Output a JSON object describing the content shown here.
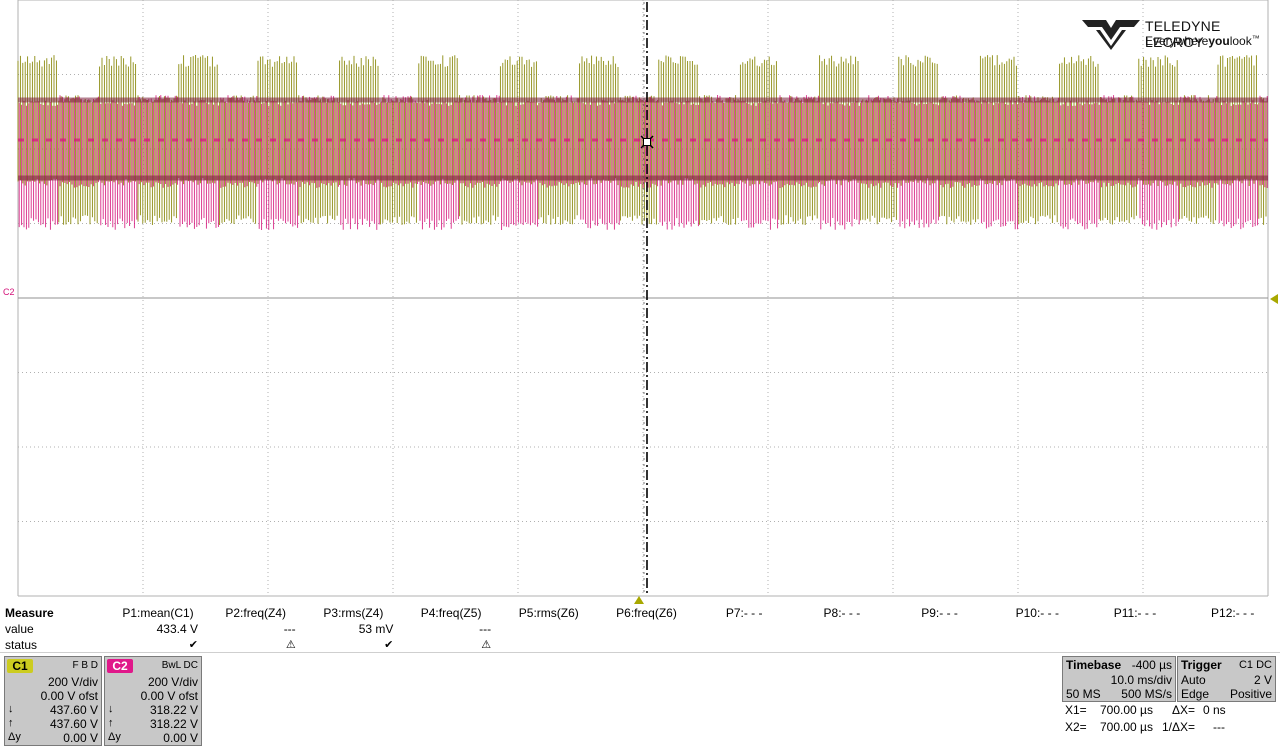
{
  "brand": {
    "name": "TELEDYNE LECROY",
    "tagline_pre": "Everywhere",
    "tagline_bold": "you",
    "tagline_post": "look",
    "tm": "™"
  },
  "trace_marker": "C2",
  "colors": {
    "c1": "#8c8c10",
    "c2": "#d4127a",
    "grid": "#b0b0b0",
    "cursor": "#000000"
  },
  "measure": {
    "title": "Measure",
    "row_value": "value",
    "row_status": "status",
    "params": [
      {
        "name": "P1:mean(C1)",
        "value": "433.4 V",
        "status": "✔"
      },
      {
        "name": "P2:freq(Z4)",
        "value": "---",
        "status": "⚠"
      },
      {
        "name": "P3:rms(Z4)",
        "value": "53 mV",
        "status": "✔"
      },
      {
        "name": "P4:freq(Z5)",
        "value": "---",
        "status": "⚠"
      },
      {
        "name": "P5:rms(Z6)",
        "value": "",
        "status": ""
      },
      {
        "name": "P6:freq(Z6)",
        "value": "",
        "status": ""
      },
      {
        "name": "P7:- - -",
        "value": "",
        "status": ""
      },
      {
        "name": "P8:- - -",
        "value": "",
        "status": ""
      },
      {
        "name": "P9:- - -",
        "value": "",
        "status": ""
      },
      {
        "name": "P10:- - -",
        "value": "",
        "status": ""
      },
      {
        "name": "P11:- - -",
        "value": "",
        "status": ""
      },
      {
        "name": "P12:- - -",
        "value": "",
        "status": ""
      }
    ]
  },
  "channels": [
    {
      "tag": "C1",
      "flags": "F  B  D",
      "vdiv": "200 V/div",
      "offset": "0.00 V ofst",
      "down_val": "437.60 V",
      "up_val": "437.60 V",
      "dy_label": "Δy",
      "dy_val": "0.00 V",
      "color": "#cccc20"
    },
    {
      "tag": "C2",
      "flags": "BwL  DC",
      "vdiv": "200 V/div",
      "offset": "0.00 V ofst",
      "down_val": "318.22 V",
      "up_val": "318.22 V",
      "dy_label": "Δy",
      "dy_val": "0.00 V",
      "color": "#e0188a"
    }
  ],
  "timebase": {
    "label": "Timebase",
    "delay": "-400 µs",
    "tdiv": "10.0 ms/div",
    "samples": "50 MS",
    "rate": "500 MS/s"
  },
  "trigger": {
    "label": "Trigger",
    "source": "C1  DC",
    "mode": "Auto",
    "level": "2 V",
    "type": "Edge",
    "slope": "Positive"
  },
  "cursors": {
    "x1_label": "X1=",
    "x1_val": "700.00 µs",
    "dx_label": "ΔX=",
    "dx_val": "0 ns",
    "x2_label": "X2=",
    "x2_val": "700.00 µs",
    "inv_label": "1/ΔX=",
    "inv_val": "---"
  }
}
